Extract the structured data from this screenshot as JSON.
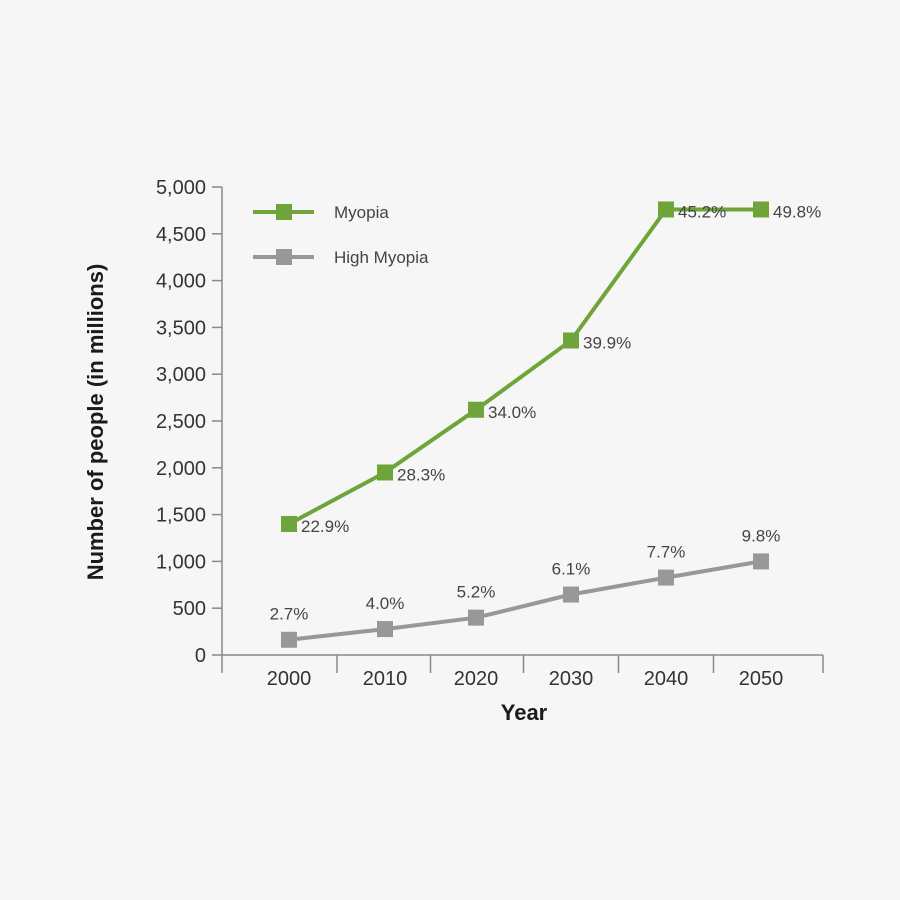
{
  "chart_data": {
    "type": "line",
    "title": "",
    "xlabel": "Year",
    "ylabel": "Number of people (in millions)",
    "categories": [
      "2000",
      "2010",
      "2020",
      "2030",
      "2040",
      "2050"
    ],
    "ylim": [
      0,
      5000
    ],
    "yticks": [
      0,
      500,
      1000,
      1500,
      2000,
      2500,
      3000,
      3500,
      4000,
      4500,
      5000
    ],
    "ytick_labels": [
      "0",
      "500",
      "1,000",
      "1,500",
      "2,000",
      "2,500",
      "3,000",
      "3,500",
      "4,000",
      "4,500",
      "5,000"
    ],
    "grid": false,
    "legend_position": "top-left",
    "series": [
      {
        "name": "Myopia",
        "color": "#6fa43a",
        "values": [
          1400,
          1950,
          2620,
          3360,
          4760,
          4760
        ],
        "labels": [
          "22.9%",
          "28.3%",
          "34.0%",
          "39.9%",
          "45.2%",
          "49.8%"
        ]
      },
      {
        "name": "High Myopia",
        "color": "#9a9896",
        "values": [
          163,
          277,
          399,
          646,
          827,
          1000
        ],
        "labels": [
          "2.7%",
          "4.0%",
          "5.2%",
          "6.1%",
          "7.7%",
          "9.8%"
        ]
      }
    ]
  }
}
